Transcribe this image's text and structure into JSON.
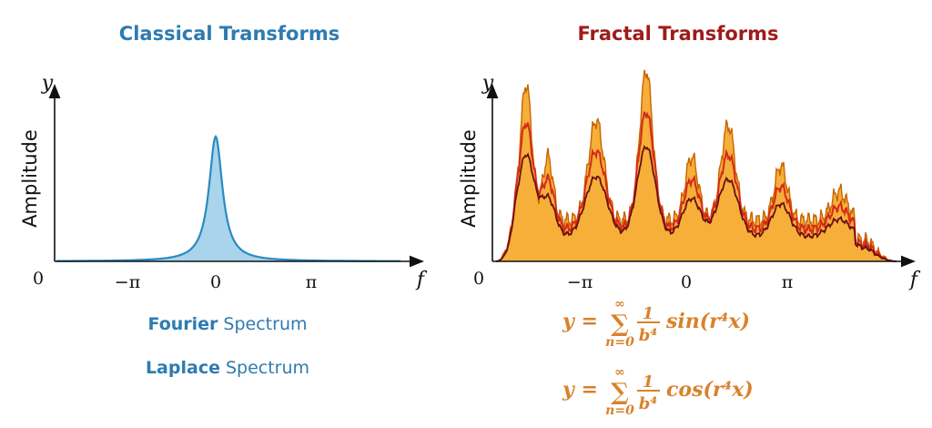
{
  "left": {
    "title": "Classical Transforms",
    "y_axis": "y",
    "axis_label": "Amplitude",
    "origin": "0",
    "ticks": [
      "−π",
      "0",
      "π"
    ],
    "x_axis": "f",
    "captions": [
      {
        "bold": "Fourier",
        "rest": "Spectrum"
      },
      {
        "bold": "Laplace",
        "rest": "Spectrum"
      }
    ]
  },
  "right": {
    "title": "Fractal Transforms",
    "y_axis": "y",
    "axis_label": "Amplitude",
    "origin": "0",
    "ticks": [
      "−π",
      "0",
      "π"
    ],
    "x_axis": "f",
    "formulas": [
      {
        "lhs": "y =",
        "upper": "∞",
        "sum": "∑",
        "lower": "n=0",
        "numerator": "1",
        "denominator": "b⁴",
        "func": "sin(r⁴x)"
      },
      {
        "lhs": "y =",
        "upper": "∞",
        "sum": "∑",
        "lower": "n=0",
        "numerator": "1",
        "denominator": "b⁴",
        "func": "cos(r⁴x)"
      }
    ]
  }
}
